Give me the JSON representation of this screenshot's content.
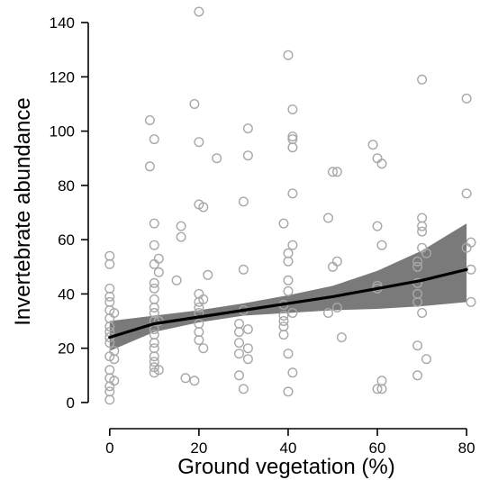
{
  "chart_data": {
    "type": "scatter",
    "xlabel": "Ground vegetation (%)",
    "ylabel": "Invertebrate abundance",
    "xlim": [
      -4,
      82
    ],
    "ylim": [
      -5,
      145
    ],
    "xticks": [
      0,
      20,
      40,
      60,
      80
    ],
    "yticks": [
      0,
      20,
      40,
      60,
      80,
      100,
      120,
      140
    ],
    "grid": false,
    "legend": "none",
    "colors": {
      "points": "#a8a8a8",
      "fit_line": "#000000",
      "confidence_band": "#7a7a7a"
    },
    "points": [
      [
        0,
        1
      ],
      [
        0,
        4
      ],
      [
        0,
        6
      ],
      [
        0,
        9
      ],
      [
        0,
        12
      ],
      [
        0,
        17
      ],
      [
        0,
        22
      ],
      [
        0,
        24
      ],
      [
        0,
        26
      ],
      [
        0,
        28
      ],
      [
        0,
        31
      ],
      [
        0,
        34
      ],
      [
        0,
        37
      ],
      [
        0,
        39
      ],
      [
        0,
        42
      ],
      [
        0,
        51
      ],
      [
        0,
        54
      ],
      [
        1,
        8
      ],
      [
        1,
        16
      ],
      [
        1,
        19
      ],
      [
        1,
        33
      ],
      [
        9,
        87
      ],
      [
        9,
        104
      ],
      [
        10,
        11
      ],
      [
        10,
        13
      ],
      [
        10,
        15
      ],
      [
        10,
        17
      ],
      [
        10,
        20
      ],
      [
        10,
        22
      ],
      [
        10,
        25
      ],
      [
        10,
        27
      ],
      [
        10,
        30
      ],
      [
        10,
        33
      ],
      [
        10,
        35
      ],
      [
        10,
        38
      ],
      [
        10,
        42
      ],
      [
        10,
        44
      ],
      [
        10,
        51
      ],
      [
        10,
        58
      ],
      [
        10,
        66
      ],
      [
        10,
        97
      ],
      [
        11,
        30
      ],
      [
        11,
        48
      ],
      [
        11,
        53
      ],
      [
        11,
        12
      ],
      [
        15,
        45
      ],
      [
        16,
        61
      ],
      [
        16,
        65
      ],
      [
        17,
        9
      ],
      [
        19,
        8
      ],
      [
        19,
        110
      ],
      [
        20,
        23
      ],
      [
        20,
        26
      ],
      [
        20,
        29
      ],
      [
        20,
        33
      ],
      [
        20,
        35
      ],
      [
        20,
        37
      ],
      [
        20,
        40
      ],
      [
        20,
        73
      ],
      [
        20,
        96
      ],
      [
        20,
        144
      ],
      [
        21,
        20
      ],
      [
        21,
        38
      ],
      [
        21,
        72
      ],
      [
        22,
        47
      ],
      [
        24,
        90
      ],
      [
        29,
        10
      ],
      [
        29,
        18
      ],
      [
        29,
        22
      ],
      [
        29,
        26
      ],
      [
        29,
        29
      ],
      [
        30,
        34
      ],
      [
        30,
        49
      ],
      [
        30,
        74
      ],
      [
        30,
        5
      ],
      [
        31,
        16
      ],
      [
        31,
        20
      ],
      [
        31,
        27
      ],
      [
        31,
        91
      ],
      [
        31,
        101
      ],
      [
        39,
        25
      ],
      [
        39,
        28
      ],
      [
        39,
        30
      ],
      [
        39,
        32
      ],
      [
        39,
        36
      ],
      [
        39,
        66
      ],
      [
        40,
        18
      ],
      [
        40,
        41
      ],
      [
        40,
        45
      ],
      [
        40,
        52
      ],
      [
        40,
        55
      ],
      [
        40,
        128
      ],
      [
        40,
        4
      ],
      [
        41,
        11
      ],
      [
        41,
        33
      ],
      [
        41,
        77
      ],
      [
        41,
        94
      ],
      [
        41,
        97
      ],
      [
        41,
        98
      ],
      [
        41,
        108
      ],
      [
        41,
        58
      ],
      [
        49,
        33
      ],
      [
        49,
        68
      ],
      [
        50,
        85
      ],
      [
        50,
        50
      ],
      [
        51,
        85
      ],
      [
        51,
        35
      ],
      [
        51,
        52
      ],
      [
        52,
        24
      ],
      [
        59,
        95
      ],
      [
        60,
        5
      ],
      [
        60,
        65
      ],
      [
        60,
        90
      ],
      [
        60,
        43
      ],
      [
        60,
        42
      ],
      [
        61,
        8
      ],
      [
        61,
        5
      ],
      [
        61,
        88
      ],
      [
        61,
        58
      ],
      [
        69,
        10
      ],
      [
        69,
        21
      ],
      [
        69,
        37
      ],
      [
        69,
        40
      ],
      [
        69,
        44
      ],
      [
        69,
        50
      ],
      [
        69,
        52
      ],
      [
        70,
        57
      ],
      [
        70,
        119
      ],
      [
        70,
        65
      ],
      [
        70,
        68
      ],
      [
        70,
        63
      ],
      [
        70,
        33
      ],
      [
        71,
        16
      ],
      [
        71,
        55
      ],
      [
        80,
        112
      ],
      [
        80,
        77
      ],
      [
        80,
        57
      ],
      [
        81,
        37
      ],
      [
        81,
        59
      ],
      [
        81,
        49
      ]
    ],
    "fit_line": {
      "x": [
        0,
        10,
        20,
        30,
        40,
        50,
        60,
        70,
        80
      ],
      "y": [
        24,
        29,
        31.5,
        34,
        36.5,
        39,
        42,
        45,
        49
      ]
    },
    "confidence_band": {
      "x": [
        0,
        10,
        20,
        30,
        40,
        50,
        60,
        70,
        80
      ],
      "lower": [
        19,
        26,
        29.5,
        32,
        33,
        34,
        34.5,
        35.5,
        37
      ],
      "upper": [
        30,
        32,
        34,
        36.5,
        39.5,
        43,
        48.5,
        56,
        66
      ]
    }
  }
}
